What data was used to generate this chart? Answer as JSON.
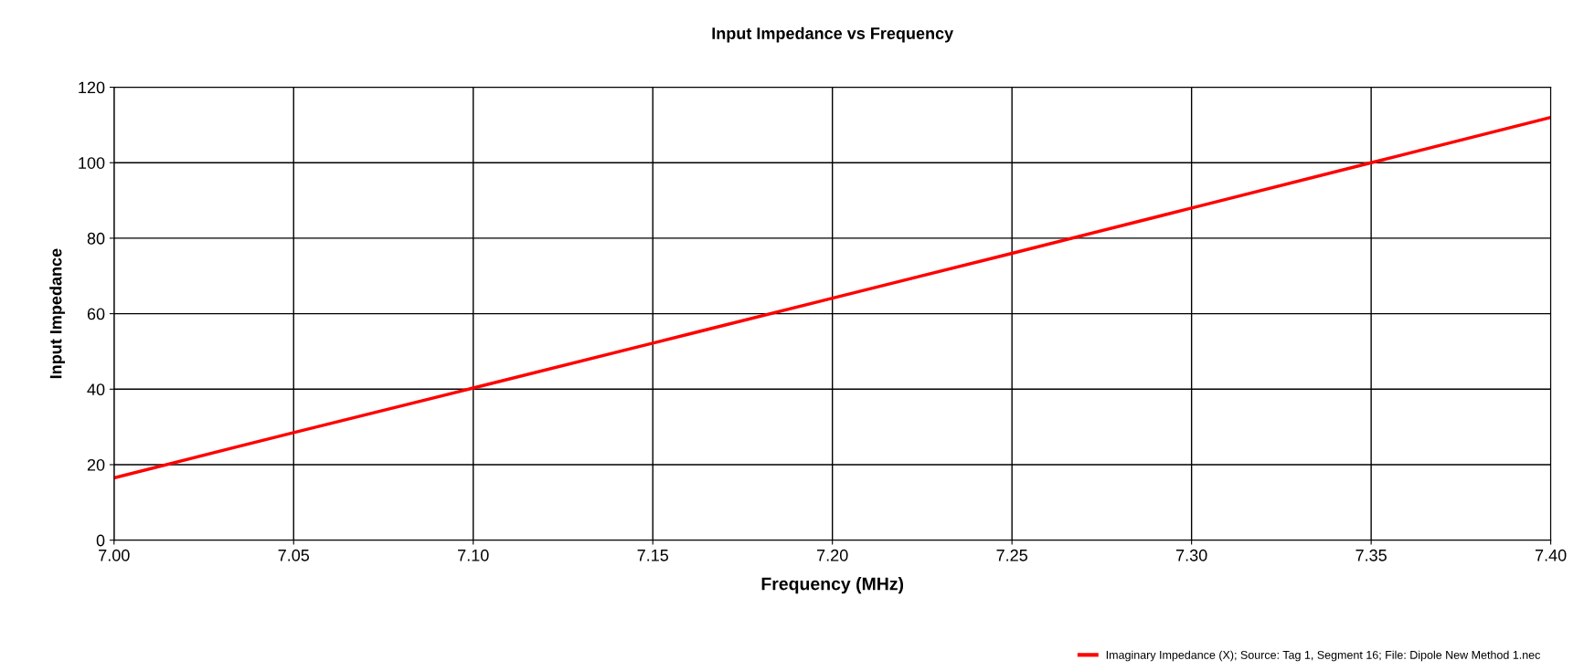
{
  "chart_data": {
    "type": "line",
    "title": "Input Impedance vs Frequency",
    "xlabel": "Frequency (MHz)",
    "ylabel": "Input Impedance",
    "x": [
      7.0,
      7.05,
      7.1,
      7.15,
      7.2,
      7.25,
      7.3,
      7.35,
      7.4
    ],
    "series": [
      {
        "name": "Imaginary Impedance (X); Source: Tag 1, Segment 16; File: Dipole New Method 1.nec",
        "color": "#ff0000",
        "values": [
          16.5,
          28.5,
          40.3,
          52.2,
          64.1,
          76.0,
          88.0,
          100.0,
          112.0
        ]
      }
    ],
    "xlim": [
      7.0,
      7.4
    ],
    "xticks": [
      {
        "value": 7.0,
        "label": "7.00"
      },
      {
        "value": 7.05,
        "label": "7.05"
      },
      {
        "value": 7.1,
        "label": "7.10"
      },
      {
        "value": 7.15,
        "label": "7.15"
      },
      {
        "value": 7.2,
        "label": "7.20"
      },
      {
        "value": 7.25,
        "label": "7.25"
      },
      {
        "value": 7.3,
        "label": "7.30"
      },
      {
        "value": 7.35,
        "label": "7.35"
      },
      {
        "value": 7.4,
        "label": "7.40"
      }
    ],
    "ylim": [
      0,
      120
    ],
    "yticks": [
      0,
      20,
      40,
      60,
      80,
      100,
      120
    ],
    "grid": true,
    "legend": "bottom right",
    "marker": "none",
    "line_style": "solid"
  }
}
